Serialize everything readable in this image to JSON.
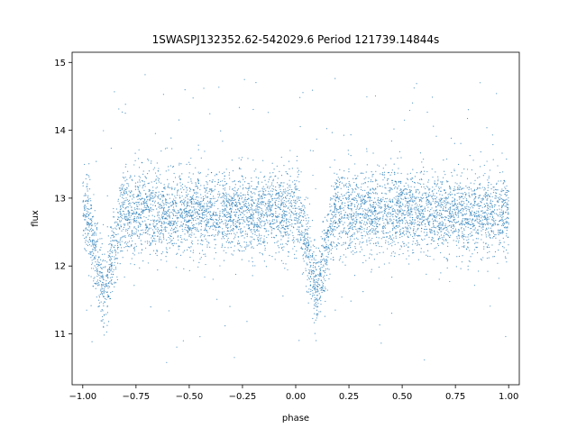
{
  "chart_data": {
    "type": "scatter",
    "title": "1SWASPJ132352.62-542029.6 Period 121739.14844s",
    "xlabel": "phase",
    "ylabel": "flux",
    "xlim": [
      -1.05,
      1.05
    ],
    "ylim": [
      10.25,
      15.15
    ],
    "xticks": [
      -1.0,
      -0.75,
      -0.5,
      -0.25,
      0.0,
      0.25,
      0.5,
      0.75,
      1.0
    ],
    "xtick_labels": [
      "−1.00",
      "−0.75",
      "−0.50",
      "−0.25",
      "0.00",
      "0.25",
      "0.50",
      "0.75",
      "1.00"
    ],
    "yticks": [
      11,
      12,
      13,
      14,
      15
    ],
    "ytick_labels": [
      "11",
      "12",
      "13",
      "14",
      "15"
    ],
    "grid": false,
    "point_color": "#1f77b4",
    "series": [
      {
        "description_profile": "phase-folded light curve, phase range -1 to 1",
        "baseline_flux": 12.8,
        "baseline_scatter": 0.3,
        "eclipse_phases": [
          -0.9,
          0.1
        ],
        "eclipse_min_flux": 11.6,
        "eclipse_half_width": 0.085,
        "outlier_range": [
          10.5,
          14.9
        ],
        "x": [
          -1.0,
          -0.95,
          -0.9,
          -0.85,
          -0.8,
          -0.7,
          -0.5,
          -0.3,
          -0.1,
          0.0,
          0.05,
          0.1,
          0.15,
          0.2,
          0.3,
          0.5,
          0.7,
          0.9,
          1.0
        ],
        "y": [
          12.75,
          12.3,
          11.6,
          12.3,
          12.75,
          12.8,
          12.8,
          12.8,
          12.8,
          12.75,
          12.3,
          11.6,
          12.3,
          12.75,
          12.8,
          12.8,
          12.8,
          12.8,
          12.8
        ]
      }
    ]
  }
}
